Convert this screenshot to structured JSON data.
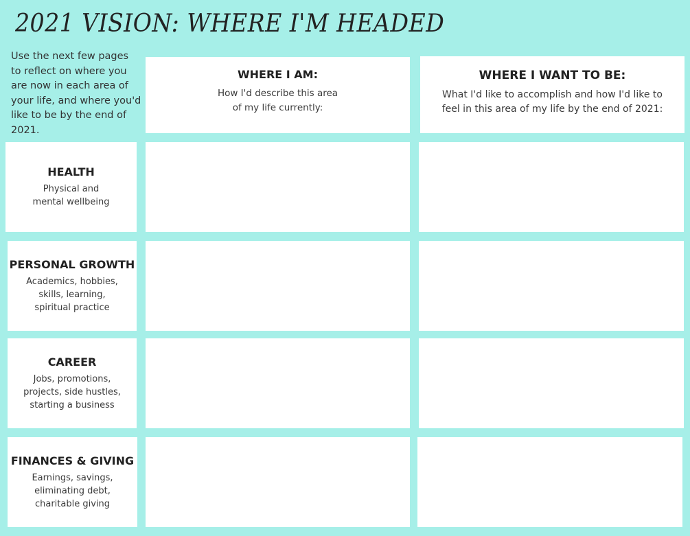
{
  "title": "2021 VISION: WHERE I'M HEADED",
  "intro": "Use the next few pages to reflect on where you are now in each area of your life, and where you'd like to be by the end of 2021.",
  "columns": [
    {
      "heading": "WHERE I AM:",
      "description": "How I'd describe this area of my life currently:"
    },
    {
      "heading": "WHERE I WANT TO BE:",
      "description": "What I'd like to accomplish and how I'd like to feel in this area of my life by the end of 2021:"
    }
  ],
  "rows": [
    {
      "heading": "HEALTH",
      "description": "Physical and mental wellbeing"
    },
    {
      "heading": "PERSONAL GROWTH",
      "description": "Academics, hobbies, skills, learning, spiritual practice"
    },
    {
      "heading": "CAREER",
      "description": "Jobs, promotions, projects, side hustles, starting a business"
    },
    {
      "heading": "FINANCES & GIVING",
      "description": "Earnings, savings, eliminating debt, charitable giving"
    }
  ],
  "colors": {
    "background": "#a6efe8",
    "box": "#ffffff"
  }
}
